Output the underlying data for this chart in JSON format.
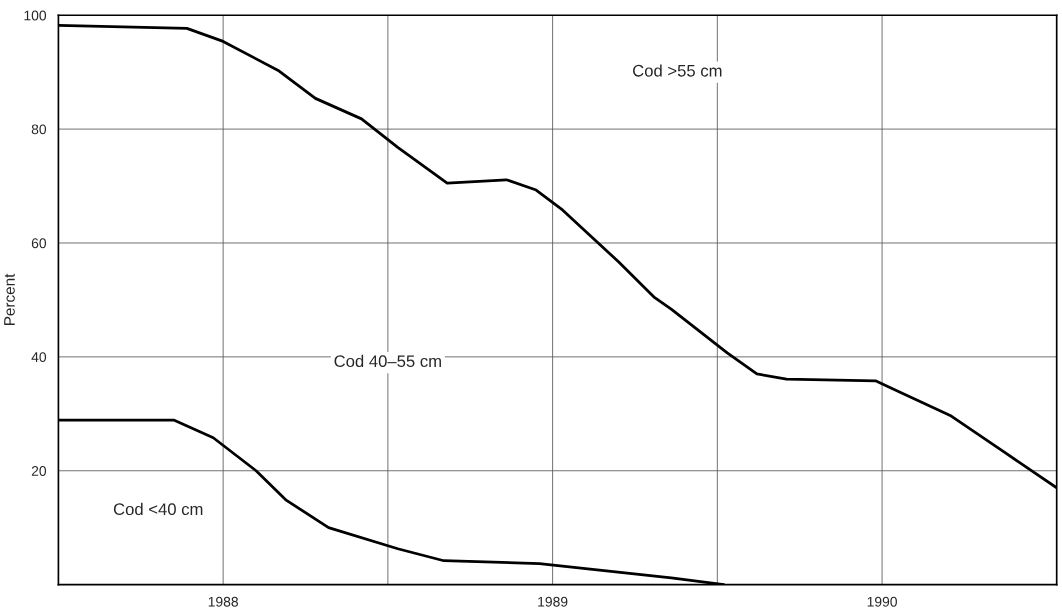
{
  "chart_data": {
    "type": "line",
    "ylabel": "Percent",
    "xlim": [
      1988,
      1991.03
    ],
    "ylim": [
      0,
      100
    ],
    "xticks": [
      {
        "value": 1988,
        "label": null
      },
      {
        "value": 1988.5,
        "label": "1988"
      },
      {
        "value": 1989,
        "label": null
      },
      {
        "value": 1989.5,
        "label": "1989"
      },
      {
        "value": 1990,
        "label": null
      },
      {
        "value": 1990.5,
        "label": "1990"
      }
    ],
    "yticks": [
      {
        "value": 0,
        "label": null
      },
      20,
      40,
      60,
      80,
      100
    ],
    "grid": true,
    "marker": "none",
    "line_style": "solid",
    "series": [
      {
        "color": "#000000",
        "x": [
          1988.0,
          1988.39,
          1988.5,
          1988.67,
          1988.78,
          1988.92,
          1989.03,
          1989.18,
          1989.36,
          1989.45,
          1989.53,
          1989.7,
          1989.81,
          1989.86,
          1990.03,
          1990.12,
          1990.21,
          1990.48,
          1990.54,
          1990.71,
          1990.87,
          1991.03
        ],
        "values": [
          98.2,
          97.7,
          95.4,
          90.2,
          85.4,
          81.8,
          76.8,
          70.5,
          71.1,
          69.3,
          65.8,
          56.7,
          50.4,
          48.4,
          40.7,
          37.0,
          36.1,
          35.8,
          34.2,
          29.6,
          23.3,
          17.0
        ]
      },
      {
        "color": "#000000",
        "x": [
          1988.0,
          1988.35,
          1988.47,
          1988.6,
          1988.69,
          1988.82,
          1989.03,
          1989.17,
          1989.46,
          1989.6,
          1989.86,
          1990.02
        ],
        "values": [
          28.9,
          28.9,
          25.8,
          20.0,
          14.9,
          10.0,
          6.3,
          4.2,
          3.7,
          2.8,
          1.2,
          0
        ]
      }
    ],
    "annotations": [
      "Cod >55 cm",
      "Cod 40–55 cm",
      "Cod <40 cm"
    ]
  }
}
